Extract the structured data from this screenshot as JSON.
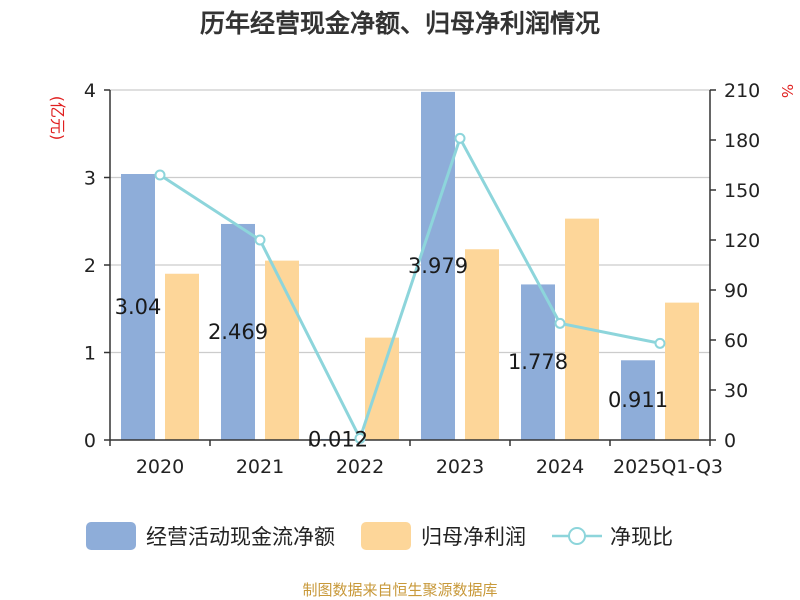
{
  "chart_data": {
    "type": "bar",
    "title": "历年经营现金净额、归母净利润情况",
    "left_axis_unit": "(亿元)",
    "right_axis_unit": "%",
    "categories": [
      "2020",
      "2021",
      "2022",
      "2023",
      "2024",
      "2025Q1-Q3"
    ],
    "y_left": {
      "min": 0,
      "max": 4,
      "ticks": [
        0,
        1,
        2,
        3,
        4
      ]
    },
    "y_right": {
      "min": 0,
      "max": 210,
      "ticks": [
        0,
        30,
        60,
        90,
        120,
        150,
        180,
        210
      ]
    },
    "grid": true,
    "legend_position": "bottom",
    "series": [
      {
        "name": "经营活动现金流净额",
        "kind": "bar",
        "axis": "left",
        "color": "#8eadd9",
        "values": [
          3.04,
          2.469,
          0.012,
          3.979,
          1.778,
          0.911
        ],
        "labels": [
          "3.04",
          "2.469",
          "0.012",
          "3.979",
          "1.778",
          "0.911"
        ]
      },
      {
        "name": "归母净利润",
        "kind": "bar",
        "axis": "left",
        "color": "#fdd699",
        "values": [
          1.9,
          2.05,
          1.17,
          2.18,
          2.53,
          1.57
        ]
      },
      {
        "name": "净现比",
        "kind": "line",
        "axis": "right",
        "color": "#8dd5db",
        "values": [
          159,
          120,
          1,
          181,
          70,
          58
        ]
      }
    ],
    "source": "制图数据来自恒生聚源数据库"
  }
}
